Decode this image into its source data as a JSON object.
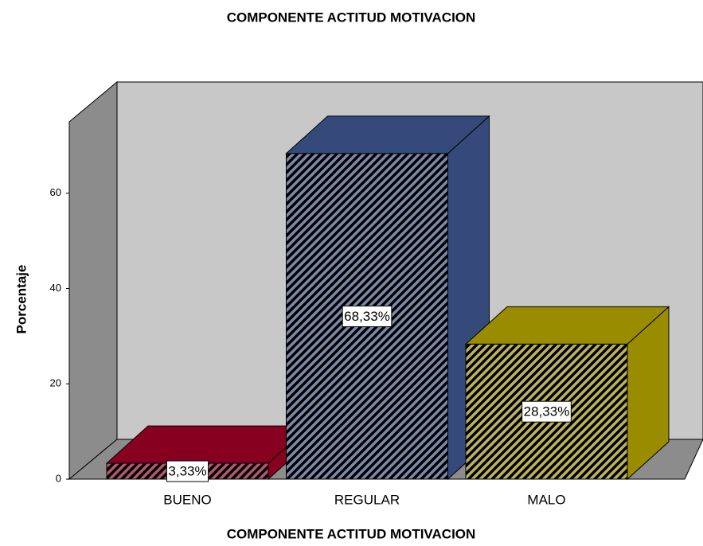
{
  "chart_data": {
    "type": "bar3d",
    "title": "COMPONENTE ACTITUD MOTIVACION",
    "x_label": "COMPONENTE ACTITUD MOTIVACION",
    "y_label": "Porcentaje",
    "categories": [
      "BUENO",
      "REGULAR",
      "MALO"
    ],
    "values": [
      3.33,
      68.33,
      28.33
    ],
    "value_labels": [
      "3,33%",
      "68,33%",
      "28,33%"
    ],
    "colors": [
      "#87001f",
      "#354a7a",
      "#998c00"
    ],
    "ylim": [
      0,
      75
    ],
    "yticks": [
      0,
      20,
      40,
      60
    ]
  }
}
